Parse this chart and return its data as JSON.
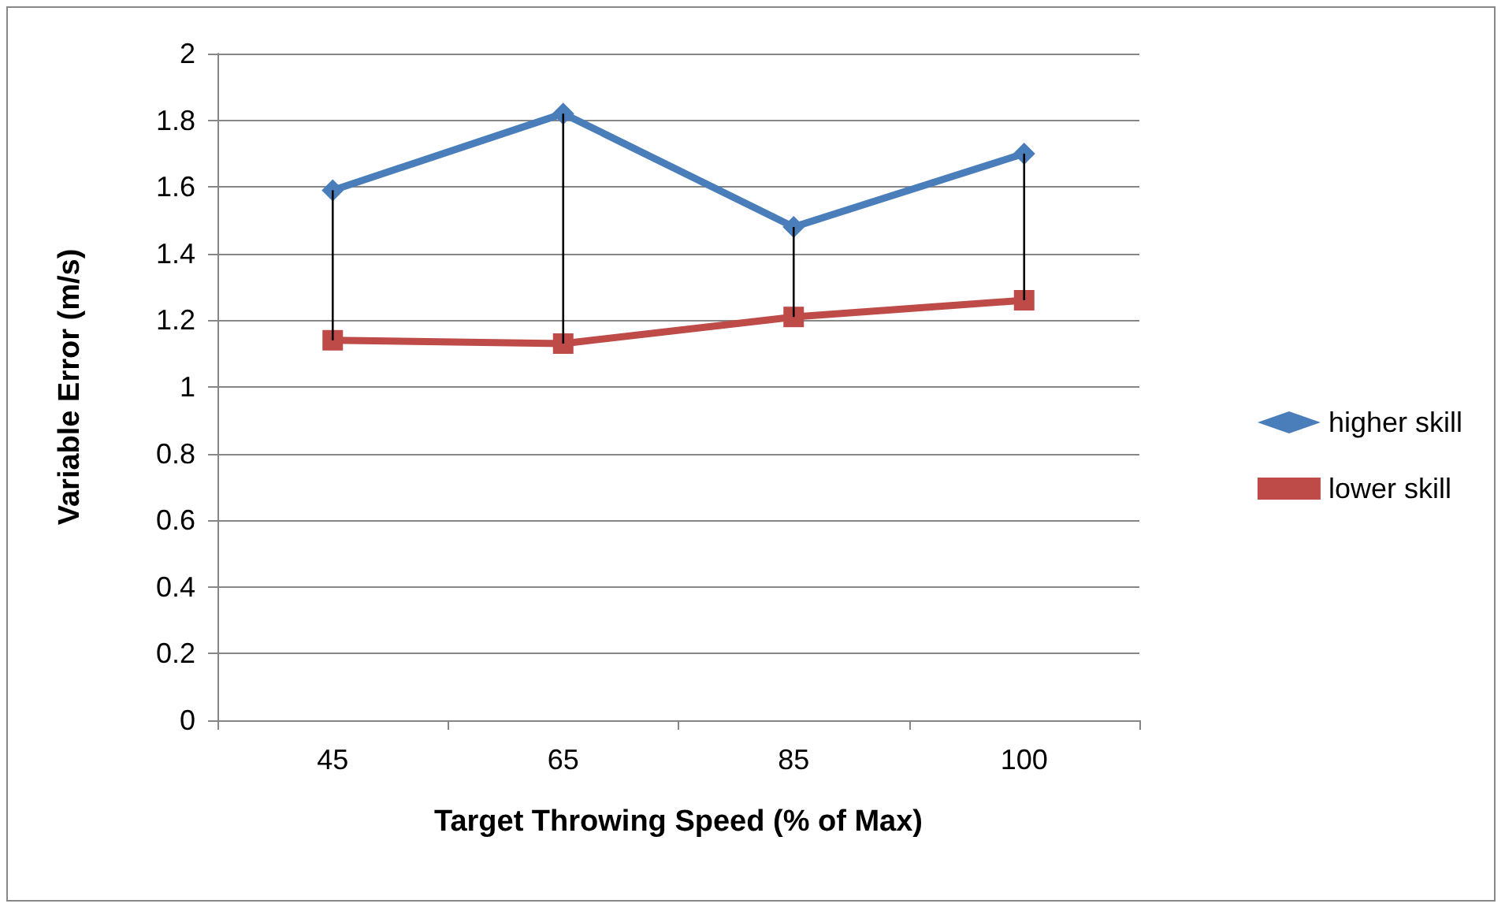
{
  "chart_data": {
    "type": "line",
    "xlabel": "Target Throwing Speed (% of Max)",
    "ylabel": "Variable Error (m/s)",
    "categories": [
      "45",
      "65",
      "85",
      "100"
    ],
    "series": [
      {
        "name": "higher skill",
        "color": "#4a7ebb",
        "marker": "diamond",
        "values": [
          1.59,
          1.82,
          1.48,
          1.7
        ],
        "errors": [
          [
            1.14,
            1.59
          ],
          [
            1.13,
            1.82
          ],
          [
            1.21,
            1.48
          ],
          [
            1.26,
            1.7
          ]
        ]
      },
      {
        "name": "lower skill",
        "color": "#be4b48",
        "marker": "square",
        "values": [
          1.14,
          1.13,
          1.21,
          1.26
        ]
      }
    ],
    "ylim": [
      0,
      2
    ],
    "yticks": [
      0,
      0.2,
      0.4,
      0.6,
      0.8,
      1,
      1.2,
      1.4,
      1.6,
      1.8,
      2
    ],
    "grid": "y",
    "legend": "right"
  }
}
